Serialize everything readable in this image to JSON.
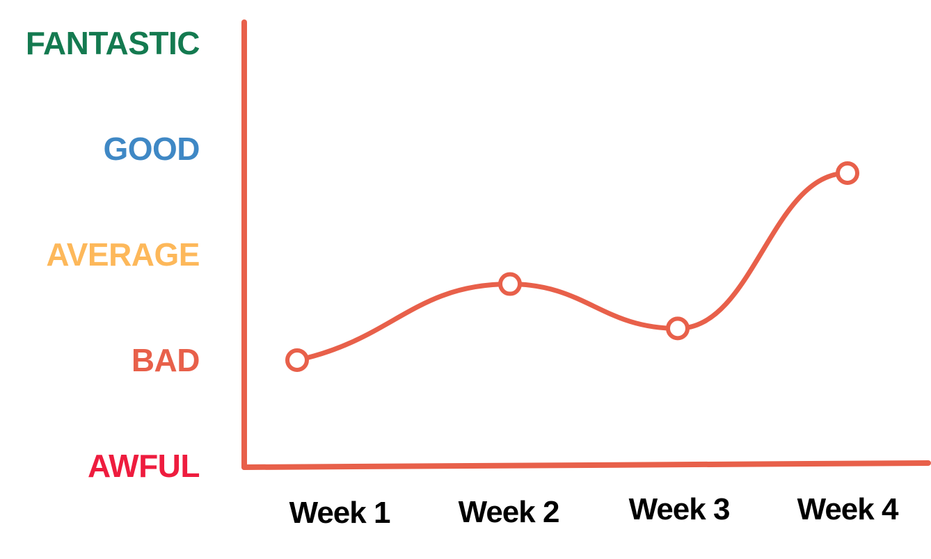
{
  "chart_data": {
    "type": "line",
    "y_levels": [
      {
        "label": "AWFUL",
        "value": 0,
        "color": "#EE1C3E"
      },
      {
        "label": "BAD",
        "value": 1,
        "color": "#E8604A"
      },
      {
        "label": "AVERAGE",
        "value": 2,
        "color": "#FDB85A"
      },
      {
        "label": "GOOD",
        "value": 3,
        "color": "#3F88C5"
      },
      {
        "label": "FANTASTIC",
        "value": 4,
        "color": "#147A50"
      }
    ],
    "categories": [
      "Week 1",
      "Week 2",
      "Week 3",
      "Week 4"
    ],
    "series": [
      {
        "values": [
          1.0,
          1.72,
          1.3,
          2.77
        ],
        "color": "#E8604A"
      }
    ],
    "ylim": [
      0,
      4
    ],
    "grid": false,
    "axis_color": "#E8604A",
    "curve": "smooth",
    "marker": "hollow-circle"
  }
}
